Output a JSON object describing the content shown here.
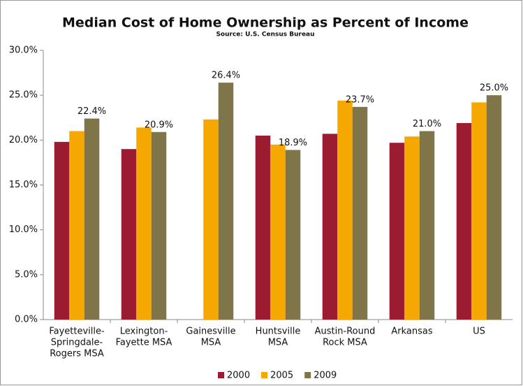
{
  "chart_data": {
    "type": "bar",
    "title": "Median Cost of Home Ownership as Percent of Income",
    "subtitle": "Source: U.S. Census Bureau",
    "categories": [
      [
        "Fayetteville-",
        "Springdale-",
        "Rogers MSA"
      ],
      [
        "Lexington-",
        "Fayette MSA"
      ],
      [
        "Gainesville",
        "MSA"
      ],
      [
        "Huntsville",
        "MSA"
      ],
      [
        "Austin-Round",
        "Rock MSA"
      ],
      [
        "Arkansas"
      ],
      [
        "US"
      ]
    ],
    "series": [
      {
        "name": "2000",
        "color": "#9b1b30",
        "values": [
          19.8,
          19.0,
          null,
          20.5,
          20.7,
          19.7,
          21.9
        ]
      },
      {
        "name": "2005",
        "color": "#f5a800",
        "values": [
          21.0,
          21.4,
          22.3,
          19.5,
          24.4,
          20.4,
          24.2
        ]
      },
      {
        "name": "2009",
        "color": "#7f7548",
        "values": [
          22.4,
          20.9,
          26.4,
          18.9,
          23.7,
          21.0,
          25.0
        ],
        "value_labels": [
          "22.4%",
          "20.9%",
          "26.4%",
          "18.9%",
          "23.7%",
          "21.0%",
          "25.0%"
        ]
      }
    ],
    "ylim": [
      0,
      30
    ],
    "yticks": [
      {
        "value": 0,
        "label": "0.0%"
      },
      {
        "value": 5,
        "label": "5.0%"
      },
      {
        "value": 10,
        "label": "10.0%"
      },
      {
        "value": 15,
        "label": "15.0%"
      },
      {
        "value": 20,
        "label": "20.0%"
      },
      {
        "value": 25,
        "label": "25.0%"
      },
      {
        "value": 30,
        "label": "30.0%"
      }
    ],
    "grid": false,
    "legend": "bottom"
  }
}
